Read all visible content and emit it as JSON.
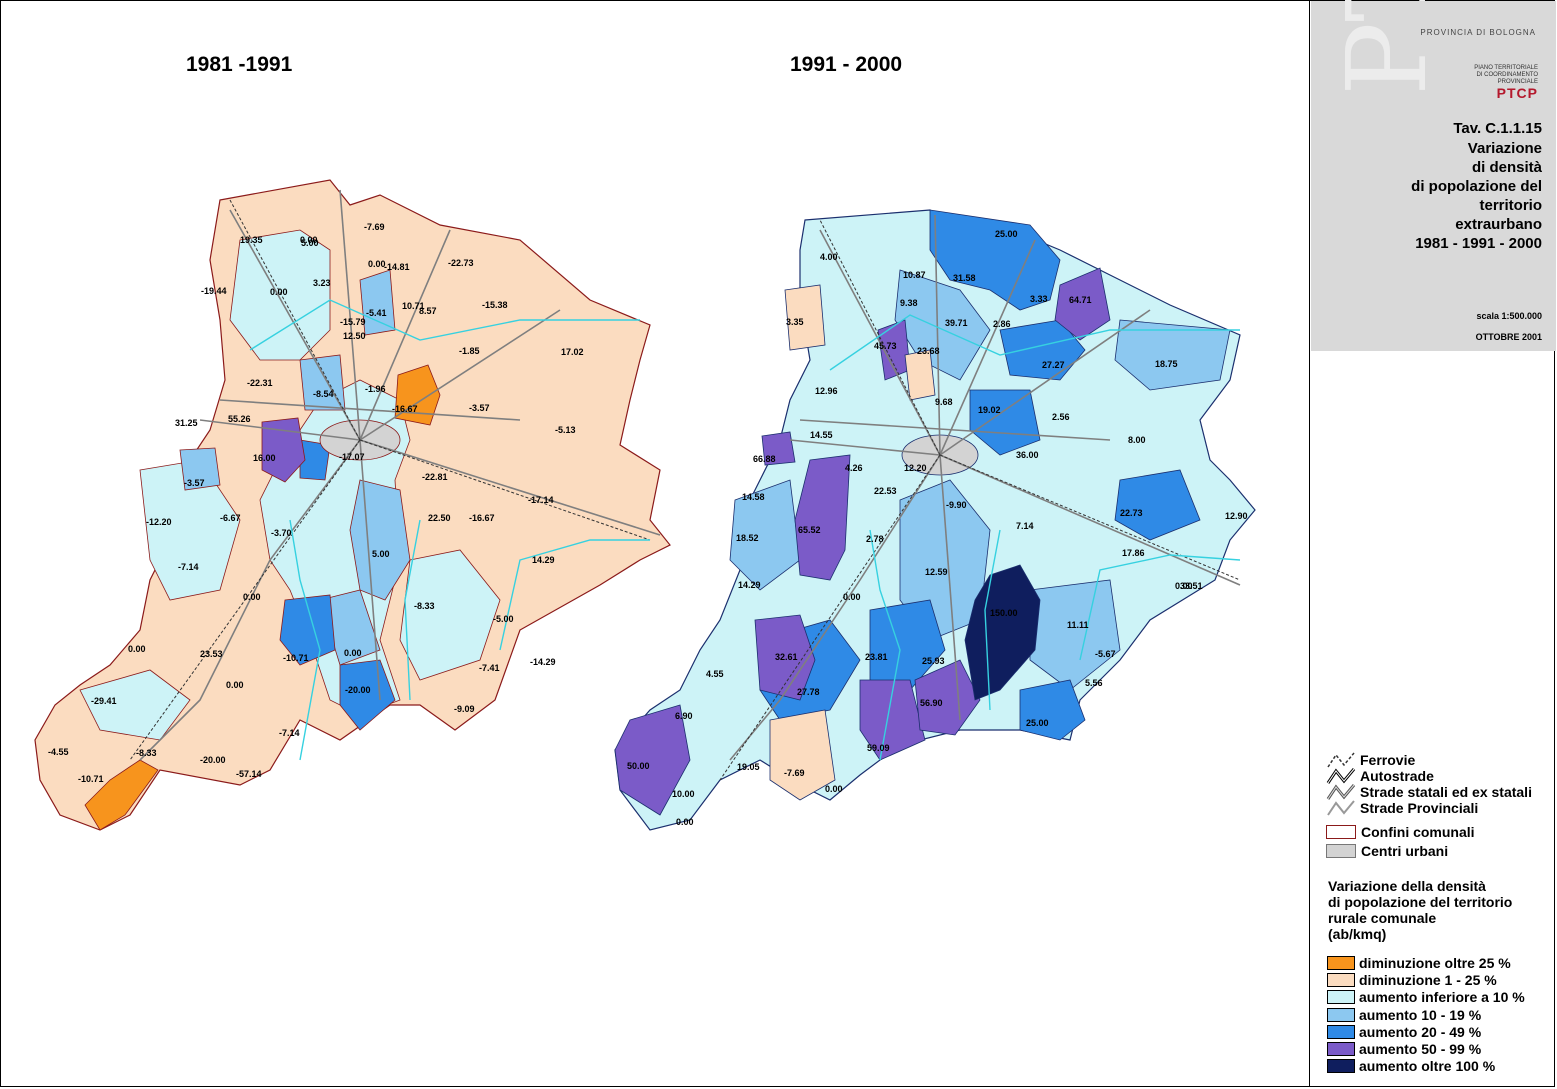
{
  "maps": {
    "left": {
      "title": "1981 -1991"
    },
    "right": {
      "title": "1991 - 2000"
    }
  },
  "title_block": {
    "province": "PROVINCIA DI BOLOGNA",
    "logo_text": "PIANO TERRITORIALE DI COORDINAMENTO PROVINCIALE",
    "logo_mark": "PTCP",
    "tavola": "Tav. C.1.1.15",
    "title_lines": "Variazione\ndi densità\ndi popolazione del\nterritorio\nextraurbano\n1981 - 1991 - 2000",
    "scale": "scala 1:500.000",
    "date": "OTTOBRE 2001"
  },
  "legend": {
    "lines": {
      "ferrovie": "Ferrovie",
      "autostrade": "Autostrade",
      "strade_statali": "Strade statali ed ex statali",
      "strade_provinciali": "Strade Provinciali"
    },
    "areas": {
      "confini": "Confini comunali",
      "centri": "Centri urbani"
    },
    "heading": "Variazione della densità\ndi popolazione del territorio\nrurale comunale\n(ab/kmq)",
    "classes": [
      {
        "label": "diminuzione oltre 25 %",
        "color": "#f7941d"
      },
      {
        "label": "diminuzione 1 - 25 %",
        "color": "#fbdcc0"
      },
      {
        "label": "aumento inferiore a 10 %",
        "color": "#cdf3f7"
      },
      {
        "label": "aumento 10 - 19 %",
        "color": "#8cc8f0"
      },
      {
        "label": "aumento 20 - 49 %",
        "color": "#2f8ae6"
      },
      {
        "label": "aumento 50 - 99 %",
        "color": "#7b5bc8"
      },
      {
        "label": "aumento oltre 100 %",
        "color": "#0f1e5e"
      }
    ]
  },
  "left_labels": [
    "19.35",
    "0.00",
    "-7.69",
    "-19.44",
    "5.00",
    "-14.81",
    "0.00",
    "3.23",
    "-22.73",
    "0.00",
    "10.71",
    "-5.41",
    "8.57",
    "-15.38",
    "-15.79",
    "12.50",
    "-1.85",
    "17.02",
    "-22.31",
    "-1.96",
    "-8.54",
    "-16.67",
    "-3.57",
    "55.26",
    "-5.13",
    "31.25",
    "16.00",
    "-17.07",
    "-22.81",
    "-3.57",
    "-17.14",
    "-12.20",
    "-6.67",
    "-3.70",
    "22.50",
    "-16.67",
    "14.29",
    "5.00",
    "-7.14",
    "0.00",
    "-8.33",
    "0.00",
    "-5.00",
    "23.53",
    "-10.71",
    "0.00",
    "-14.29",
    "0.00",
    "-7.41",
    "-29.41",
    "-20.00",
    "-9.09",
    "-4.55",
    "-8.33",
    "-7.14",
    "-20.00",
    "-10.71",
    "-57.14"
  ],
  "right_labels": [
    "25.00",
    "4.00",
    "10.87",
    "31.58",
    "3.35",
    "64.71",
    "9.38",
    "39.71",
    "2.86",
    "3.33",
    "45.73",
    "23.68",
    "27.27",
    "18.75",
    "12.96",
    "9.68",
    "19.02",
    "2.56",
    "8.00",
    "66.88",
    "14.55",
    "12.20",
    "4.26",
    "22.53",
    "36.00",
    "14.58",
    "-9.90",
    "7.14",
    "22.73",
    "12.90",
    "18.52",
    "65.52",
    "2.78",
    "0.00",
    "17.86",
    "14.29",
    "0.00",
    "12.59",
    "150.00",
    "11.11",
    "33.51",
    "32.61",
    "23.81",
    "25.93",
    "4.55",
    "27.78",
    "56.90",
    "-5.67",
    "5.56",
    "6.90",
    "59.09",
    "25.00",
    "50.00",
    "19.05",
    "-7.69",
    "10.00",
    "0.00",
    "0.00"
  ],
  "colors": {
    "boundary": "#8b1a1a",
    "road": "#7f7f7f",
    "river": "#36d1e0",
    "urban": "#d3d3d3"
  }
}
